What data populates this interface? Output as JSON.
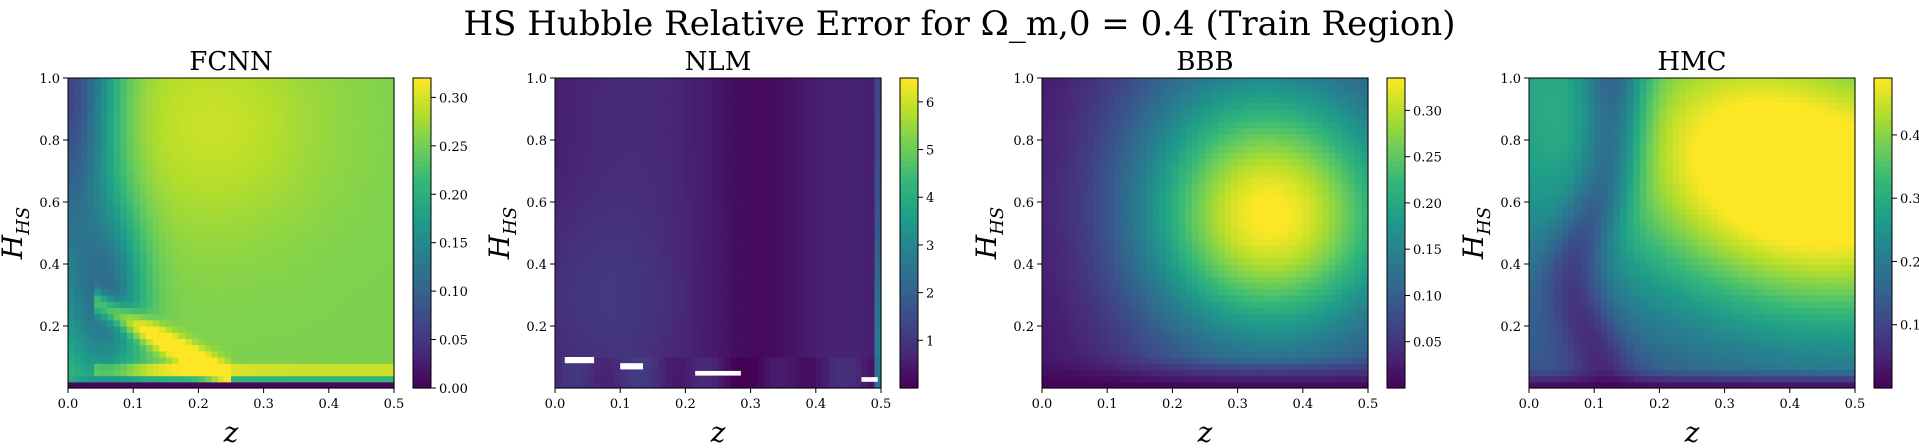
{
  "figure": {
    "title": "HS Hubble Relative Error for Ω_m,0 = 0.4 (Train Region)"
  },
  "colormap": [
    "#440154",
    "#482878",
    "#3e4989",
    "#31688e",
    "#26828e",
    "#1f9e89",
    "#35b779",
    "#6ece58",
    "#b5de2b",
    "#fde725"
  ],
  "chart_data": [
    {
      "type": "heatmap",
      "title": "FCNN",
      "xlabel": "z",
      "ylabel": "H_HS",
      "xlim": [
        0,
        0.5
      ],
      "ylim": [
        0,
        1
      ],
      "xticks": [
        "0.0",
        "0.1",
        "0.2",
        "0.3",
        "0.4",
        "0.5"
      ],
      "yticks": [
        "0.2",
        "0.4",
        "0.6",
        "0.8",
        "1.0"
      ],
      "colorbar": {
        "min": 0,
        "max": 0.32,
        "ticks": [
          "0.00",
          "0.05",
          "0.10",
          "0.15",
          "0.20",
          "0.25",
          "0.30"
        ],
        "tick_values": [
          0,
          0.05,
          0.1,
          0.15,
          0.2,
          0.25,
          0.3
        ]
      },
      "value_range": [
        0,
        0.32
      ],
      "field": "fcnn"
    },
    {
      "type": "heatmap",
      "title": "NLM",
      "xlabel": "z",
      "ylabel": "H_HS",
      "xlim": [
        0,
        0.5
      ],
      "ylim": [
        0,
        1
      ],
      "xticks": [
        "0.0",
        "0.1",
        "0.2",
        "0.3",
        "0.4",
        "0.5"
      ],
      "yticks": [
        "0.2",
        "0.4",
        "0.6",
        "0.8",
        "1.0"
      ],
      "colorbar": {
        "min": 0,
        "max": 6.5,
        "ticks": [
          "1",
          "2",
          "3",
          "4",
          "5",
          "6"
        ],
        "tick_values": [
          1,
          2,
          3,
          4,
          5,
          6
        ]
      },
      "value_range": [
        0,
        6.5
      ],
      "field": "nlm"
    },
    {
      "type": "heatmap",
      "title": "BBB",
      "xlabel": "z",
      "ylabel": "H_HS",
      "xlim": [
        0,
        0.5
      ],
      "ylim": [
        0,
        1
      ],
      "xticks": [
        "0.0",
        "0.1",
        "0.2",
        "0.3",
        "0.4",
        "0.5"
      ],
      "yticks": [
        "0.2",
        "0.4",
        "0.6",
        "0.8",
        "1.0"
      ],
      "colorbar": {
        "min": 0,
        "max": 0.335,
        "ticks": [
          "0.05",
          "0.10",
          "0.15",
          "0.20",
          "0.25",
          "0.30"
        ],
        "tick_values": [
          0.05,
          0.1,
          0.15,
          0.2,
          0.25,
          0.3
        ]
      },
      "value_range": [
        0,
        0.335
      ],
      "field": "bbb"
    },
    {
      "type": "heatmap",
      "title": "HMC",
      "xlabel": "z",
      "ylabel": "H_HS",
      "xlim": [
        0,
        0.5
      ],
      "ylim": [
        0,
        1
      ],
      "xticks": [
        "0.0",
        "0.1",
        "0.2",
        "0.3",
        "0.4",
        "0.5"
      ],
      "yticks": [
        "0.2",
        "0.4",
        "0.6",
        "0.8",
        "1.0"
      ],
      "colorbar": {
        "min": 0,
        "max": 0.49,
        "ticks": [
          "0.1",
          "0.2",
          "0.3",
          "0.4"
        ],
        "tick_values": [
          0.1,
          0.2,
          0.3,
          0.4
        ]
      },
      "value_range": [
        0,
        0.49
      ],
      "field": "hmc"
    }
  ]
}
